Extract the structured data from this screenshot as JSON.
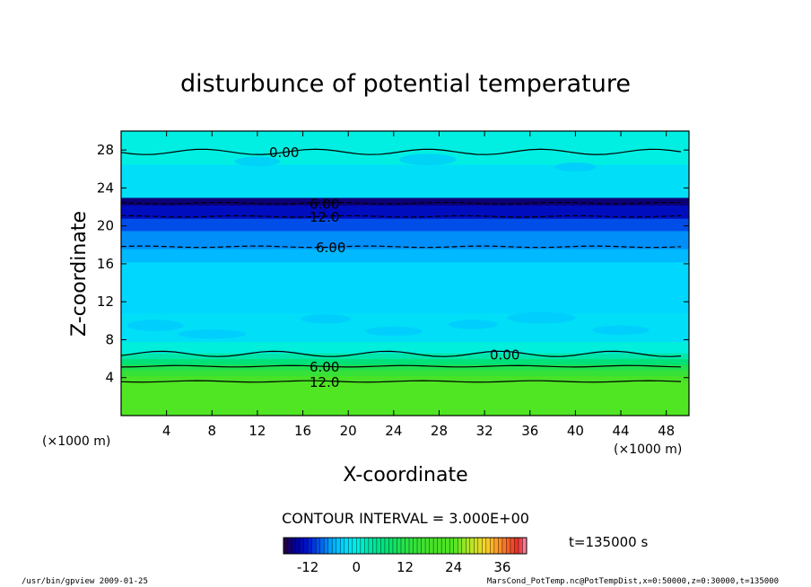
{
  "chart_data": {
    "type": "heatmap",
    "title": "disturbunce of potential temperature",
    "xlabel": "X-coordinate",
    "ylabel": "Z-coordinate",
    "x_unit": "(×1000 m)",
    "y_unit": "(×1000 m)",
    "xlim": [
      0,
      50
    ],
    "ylim": [
      0,
      30
    ],
    "x_ticks": [
      "4",
      "8",
      "12",
      "16",
      "20",
      "24",
      "28",
      "32",
      "36",
      "40",
      "44",
      "48"
    ],
    "y_ticks": [
      "4",
      "8",
      "12",
      "16",
      "20",
      "24",
      "28"
    ],
    "bands": [
      {
        "z0": 0.0,
        "z1": 3.6,
        "value": 24.0
      },
      {
        "z0": 3.6,
        "z1": 4.2,
        "value": 19.0
      },
      {
        "z0": 4.2,
        "z1": 4.8,
        "value": 15.0
      },
      {
        "z0": 4.8,
        "z1": 5.4,
        "value": 11.0
      },
      {
        "z0": 5.4,
        "z1": 6.0,
        "value": 7.0
      },
      {
        "z0": 6.0,
        "z1": 6.6,
        "value": 3.0
      },
      {
        "z0": 6.6,
        "z1": 7.8,
        "value": 0.5
      },
      {
        "z0": 7.8,
        "z1": 10.8,
        "value": -2.0
      },
      {
        "z0": 10.8,
        "z1": 16.2,
        "value": -3.0
      },
      {
        "z0": 16.2,
        "z1": 17.6,
        "value": -5.0
      },
      {
        "z0": 17.6,
        "z1": 19.5,
        "value": -7.0
      },
      {
        "z0": 19.5,
        "z1": 20.8,
        "value": -9.5
      },
      {
        "z0": 20.8,
        "z1": 22.2,
        "value": -13.0
      },
      {
        "z0": 22.2,
        "z1": 23.0,
        "value": -16.0
      },
      {
        "z0": 23.0,
        "z1": 26.5,
        "value": -2.0
      },
      {
        "z0": 26.5,
        "z1": 30.0,
        "value": 0.2
      }
    ],
    "contours": [
      {
        "z": 3.6,
        "label": "12.0"
      },
      {
        "z": 5.2,
        "label": "6.00"
      },
      {
        "z": 6.5,
        "label": "0.00"
      },
      {
        "z": 17.8,
        "label": "6.00"
      },
      {
        "z": 21.0,
        "label": "12.0"
      },
      {
        "z": 22.4,
        "label": "6.00"
      },
      {
        "z": 27.8,
        "label": "0.00"
      }
    ],
    "contour_interval_text": "CONTOUR INTERVAL = 3.000E+00",
    "colorbar": {
      "min": -18,
      "max": 42,
      "tick_labels": [
        "-12",
        "0",
        "12",
        "24",
        "36"
      ]
    },
    "time_text": "t=135000 s"
  },
  "footer": {
    "left": "/usr/bin/gpview   2009-01-25",
    "right": "MarsCond_PotTemp.nc@PotTempDist,x=0:50000,z=0:30000,t=135000"
  }
}
